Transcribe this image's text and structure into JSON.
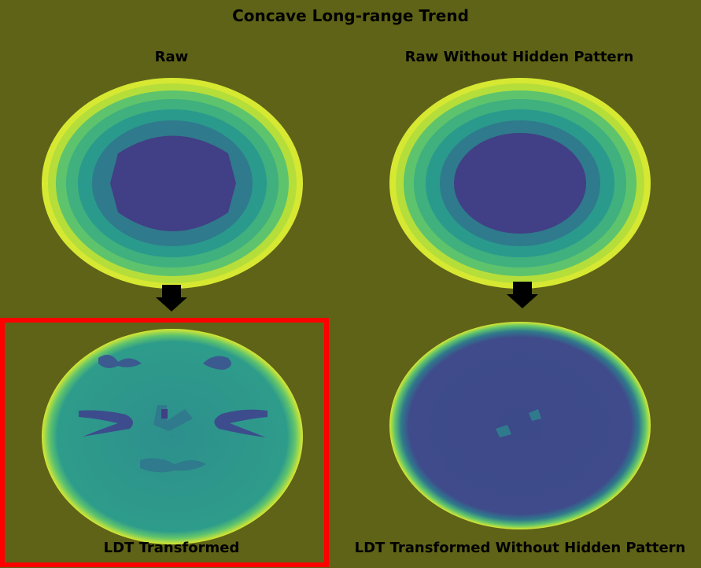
{
  "figure": {
    "title": "Concave Long-range Trend",
    "panels": [
      {
        "title": "Raw"
      },
      {
        "title": "Raw Without Hidden Pattern"
      },
      {
        "title": "LDT Transformed"
      },
      {
        "title": "LDT Transformed Without Hidden Pattern"
      }
    ],
    "colors": {
      "background": "#5f6317",
      "ring_yellow": "#d7e832",
      "ring_lightgreen": "#8cd24a",
      "ring_green": "#3fb07e",
      "ring_teal": "#2a9a8d",
      "ring_blue": "#2f7a8c",
      "center_purple": "#413f85",
      "highlight_box": "#ff0000",
      "arrow": "#000000"
    },
    "highlighted_panel": "LDT Transformed"
  }
}
